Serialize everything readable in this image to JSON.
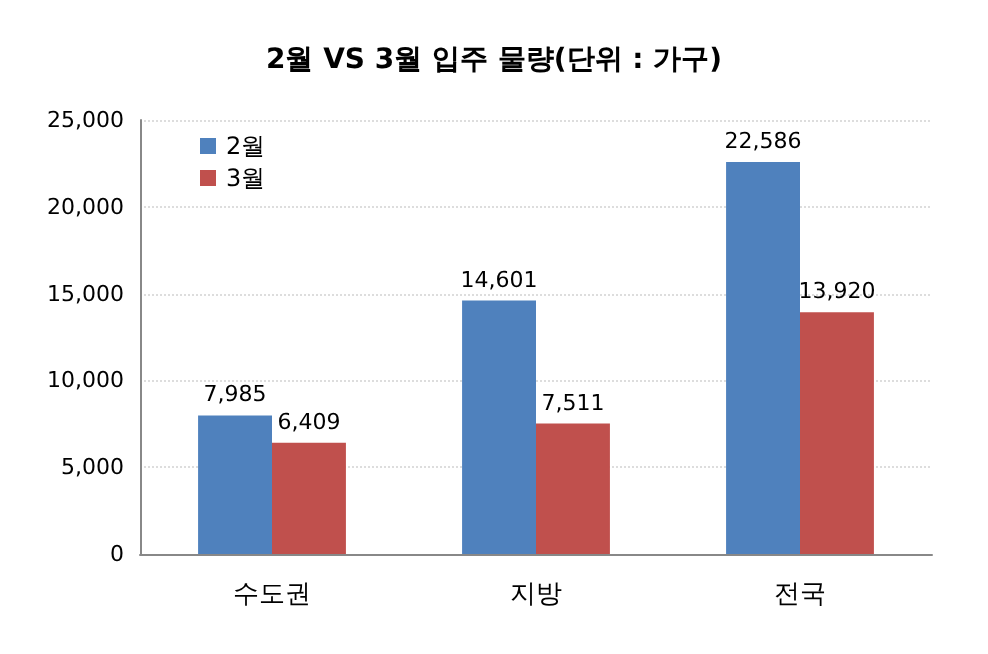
{
  "chart_data": {
    "type": "bar",
    "title": "2월 VS 3월 입주 물량(단위 : 가구)",
    "categories": [
      "수도권",
      "지방",
      "전국"
    ],
    "series": [
      {
        "name": "2월",
        "color": "#4f81bd",
        "values": [
          7985,
          14601,
          22586
        ],
        "value_labels": [
          "7,985",
          "14,601",
          "22,586"
        ]
      },
      {
        "name": "3월",
        "color": "#c0504d",
        "values": [
          6409,
          7511,
          13920
        ],
        "value_labels": [
          "6,409",
          "7,511",
          "13,920"
        ]
      }
    ],
    "ylim": [
      0,
      25000
    ],
    "yticks": [
      0,
      {
        "value": 5000,
        "label": "5,000"
      },
      {
        "value": 10000,
        "label": "10,000"
      },
      {
        "value": 15000,
        "label": "15,000"
      },
      {
        "value": 20000,
        "label": "20,000"
      },
      {
        "value": 25000,
        "label": "25,000"
      }
    ],
    "grid": "y",
    "legend": "top left"
  }
}
